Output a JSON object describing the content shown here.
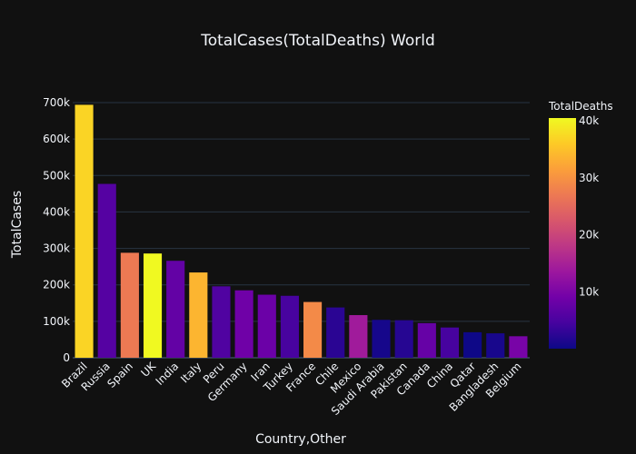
{
  "chart_data": {
    "type": "bar",
    "title": "TotalCases(TotalDeaths) World",
    "xlabel": "Country,Other",
    "ylabel": "TotalCases",
    "ylim": [
      0,
      700000
    ],
    "yticks": [
      {
        "value": 0,
        "label": "0"
      },
      {
        "value": 100000,
        "label": "100k"
      },
      {
        "value": 200000,
        "label": "200k"
      },
      {
        "value": 300000,
        "label": "300k"
      },
      {
        "value": 400000,
        "label": "400k"
      },
      {
        "value": 500000,
        "label": "500k"
      },
      {
        "value": 600000,
        "label": "600k"
      },
      {
        "value": 700000,
        "label": "700k"
      }
    ],
    "grid": true,
    "categories": [
      "Brazil",
      "Russia",
      "Spain",
      "UK",
      "India",
      "Italy",
      "Peru",
      "Germany",
      "Iran",
      "Turkey",
      "France",
      "Chile",
      "Mexico",
      "Saudi Arabia",
      "Pakistan",
      "Canada",
      "China",
      "Qatar",
      "Bangladesh",
      "Belgium"
    ],
    "values": [
      694000,
      477000,
      288000,
      286000,
      266000,
      234000,
      196000,
      185000,
      173000,
      170000,
      153000,
      138000,
      117000,
      104000,
      103000,
      95000,
      83000,
      70000,
      67000,
      59000
    ],
    "colors": [
      37000,
      6000,
      27000,
      40500,
      7500,
      33800,
      5500,
      8700,
      8300,
      4700,
      29000,
      2300,
      14000,
      700,
      2000,
      7800,
      4600,
      60,
      900,
      9600
    ],
    "colorbar": {
      "title": "TotalDeaths",
      "range": [
        0,
        40500
      ],
      "ticks": [
        {
          "value": 10000,
          "label": "10k"
        },
        {
          "value": 20000,
          "label": "20k"
        },
        {
          "value": 30000,
          "label": "30k"
        },
        {
          "value": 40000,
          "label": "40k"
        }
      ],
      "colorscale": [
        "#0d0887",
        "#46039f",
        "#7201a8",
        "#9c179e",
        "#bd3786",
        "#d8576b",
        "#ed7953",
        "#fb9f3a",
        "#fdca26",
        "#f0f921"
      ]
    }
  }
}
